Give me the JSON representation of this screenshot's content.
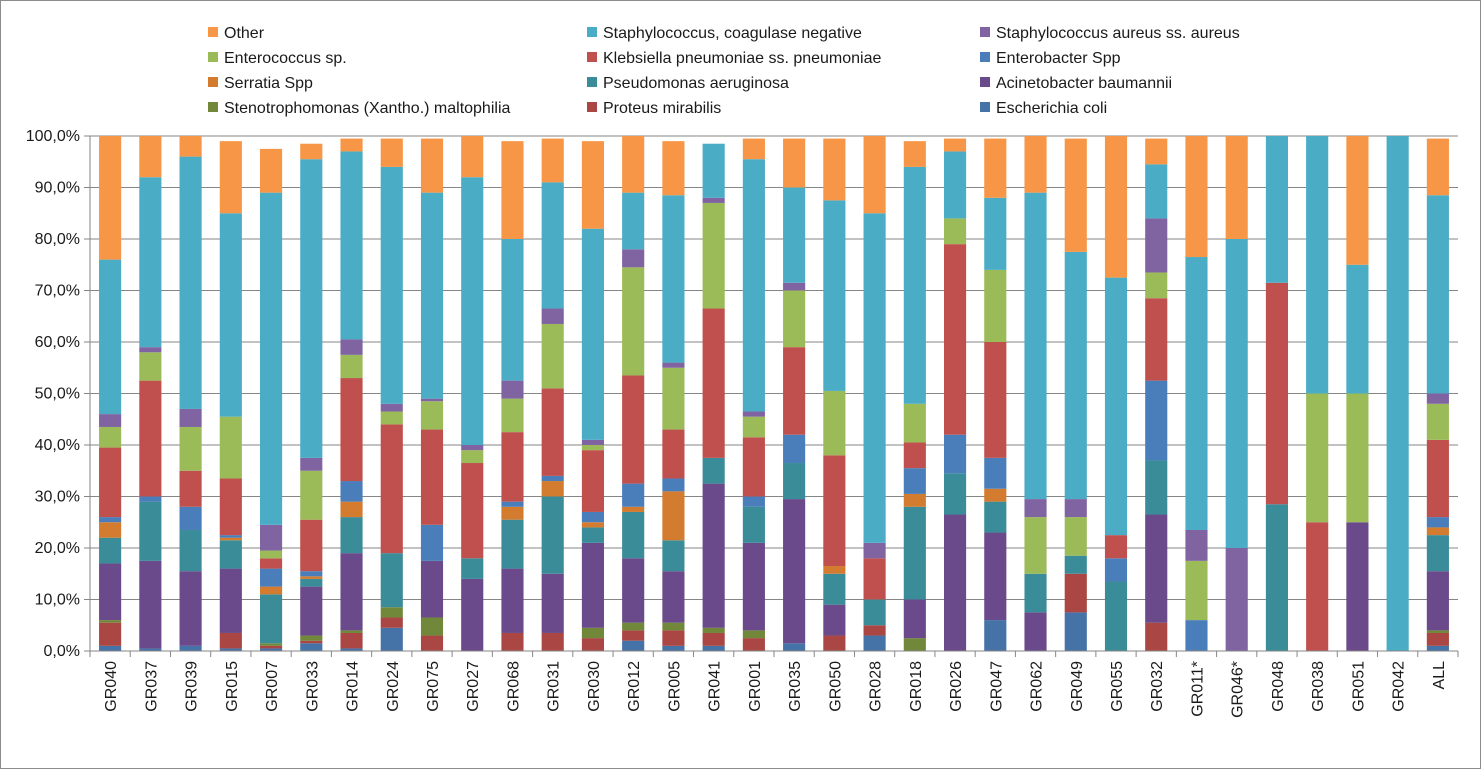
{
  "chart_data": {
    "type": "bar",
    "stacked": true,
    "normalized": true,
    "title": "",
    "xlabel": "",
    "ylabel": "",
    "ylim": [
      0,
      100
    ],
    "yticks": [
      "0,0%",
      "10,0%",
      "20,0%",
      "30,0%",
      "40,0%",
      "50,0%",
      "60,0%",
      "70,0%",
      "80,0%",
      "90,0%",
      "100,0%"
    ],
    "grid": "horizontal",
    "legend_position": "top",
    "categories": [
      "GR040",
      "GR037",
      "GR039",
      "GR015",
      "GR007",
      "GR033",
      "GR014",
      "GR024",
      "GR075",
      "GR027",
      "GR068",
      "GR031",
      "GR030",
      "GR012",
      "GR005",
      "GR041",
      "GR001",
      "GR035",
      "GR050",
      "GR028",
      "GR018",
      "GR026",
      "GR047",
      "GR062",
      "GR049",
      "GR055",
      "GR032",
      "GR011*",
      "GR046*",
      "GR048",
      "GR038",
      "GR051",
      "GR042",
      "ALL"
    ],
    "legend_order": [
      "Other",
      "Staphylococcus, coagulase negative",
      "Staphylococcus aureus ss. aureus",
      "Enterococcus sp.",
      "Klebsiella pneumoniae ss. pneumoniae",
      "Enterobacter Spp",
      "Serratia Spp",
      "Pseudomonas aeruginosa",
      "Acinetobacter baumannii",
      "Stenotrophomonas (Xantho.) maltophilia",
      "Proteus mirabilis",
      "Escherichia coli"
    ],
    "series": [
      {
        "name": "Escherichia coli",
        "color": "#4572A7",
        "values": [
          1,
          0.5,
          1,
          0.5,
          0.5,
          1.5,
          0.5,
          4.5,
          0,
          0,
          0,
          0,
          0,
          2,
          1,
          1,
          0,
          1.5,
          0,
          3,
          0,
          0,
          6,
          0,
          7.5,
          0,
          0,
          0,
          0,
          0,
          0,
          0,
          0,
          1
        ]
      },
      {
        "name": "Proteus mirabilis",
        "color": "#AA4643",
        "values": [
          4.5,
          0,
          0,
          3,
          0.5,
          0.5,
          3,
          2,
          3,
          0,
          3.5,
          3.5,
          2.5,
          2,
          3,
          2.5,
          2.5,
          0,
          3,
          2,
          0,
          0,
          0,
          0,
          7.5,
          0,
          5.5,
          0,
          0,
          0,
          0,
          0,
          0,
          2.5
        ]
      },
      {
        "name": "Stenotrophomonas (Xantho.) maltophilia",
        "color": "#71883B",
        "values": [
          0.5,
          0,
          0,
          0,
          0.5,
          1,
          0.5,
          2,
          3.5,
          0,
          0,
          0,
          2,
          1.5,
          1.5,
          1,
          1.5,
          0,
          0,
          0,
          2.5,
          0,
          0,
          0,
          0,
          0,
          0,
          0,
          0,
          0,
          0,
          0,
          0,
          0.5
        ]
      },
      {
        "name": "Acinetobacter baumannii",
        "color": "#6A4A8A",
        "values": [
          11,
          17,
          14.5,
          12.5,
          0,
          9.5,
          15,
          0,
          11,
          14,
          12.5,
          11.5,
          16.5,
          12.5,
          10,
          28,
          17,
          28,
          6,
          0,
          7.5,
          26.5,
          17,
          7.5,
          0,
          0,
          21,
          0,
          0,
          0,
          0,
          25,
          0,
          11.5
        ]
      },
      {
        "name": "Pseudomonas aeruginosa",
        "color": "#3A8C99",
        "values": [
          5,
          11.5,
          8,
          5.5,
          9.5,
          1.5,
          7,
          10.5,
          0,
          4,
          9.5,
          15,
          3,
          9,
          6,
          5,
          7,
          7,
          6,
          5,
          18,
          8,
          6,
          7.5,
          3.5,
          13.5,
          10.5,
          0,
          0,
          28.5,
          0,
          0,
          0,
          7
        ]
      },
      {
        "name": "Serratia Spp",
        "color": "#D37B2F",
        "values": [
          3,
          0,
          0,
          0.5,
          1.5,
          0.5,
          3,
          0,
          0,
          0,
          2.5,
          3,
          1,
          1,
          9.5,
          0,
          0,
          0,
          1.5,
          0,
          2.5,
          0,
          2.5,
          0,
          0,
          0,
          0,
          0,
          0,
          0,
          0,
          0,
          0,
          1.5
        ]
      },
      {
        "name": "Enterobacter Spp",
        "color": "#4A7EBB",
        "values": [
          1,
          1,
          4.5,
          0.5,
          3.5,
          1,
          4,
          0,
          7,
          0,
          1,
          1,
          2,
          4.5,
          2.5,
          0,
          2,
          5.5,
          0,
          0,
          5,
          7.5,
          6,
          0,
          0,
          4.5,
          15.5,
          6,
          0,
          0,
          0,
          0,
          0,
          2
        ]
      },
      {
        "name": "Klebsiella pneumoniae ss. pneumoniae",
        "color": "#C0504D",
        "values": [
          13.5,
          22.5,
          7,
          11,
          2,
          10,
          20,
          25,
          18.5,
          18.5,
          13.5,
          17,
          12,
          21,
          9.5,
          29,
          11.5,
          17,
          21.5,
          8,
          5,
          37,
          22.5,
          0,
          0,
          4.5,
          16,
          0,
          0,
          43,
          25,
          0,
          0,
          15
        ]
      },
      {
        "name": "Enterococcus sp.",
        "color": "#9BBB59",
        "values": [
          4,
          5.5,
          8.5,
          12,
          1.5,
          9.5,
          4.5,
          2.5,
          5.5,
          2.5,
          6.5,
          12.5,
          1,
          21,
          12,
          20.5,
          4,
          11,
          12.5,
          0,
          7.5,
          5,
          14,
          11,
          7.5,
          0,
          5,
          11.5,
          0,
          0,
          25,
          25,
          0,
          7
        ]
      },
      {
        "name": "Staphylococcus aureus ss. aureus",
        "color": "#8064A2",
        "values": [
          2.5,
          1,
          3.5,
          0,
          5,
          2.5,
          3,
          1.5,
          0.5,
          1,
          3.5,
          3,
          1,
          3.5,
          1,
          1,
          1,
          1.5,
          0,
          3,
          0,
          0,
          0,
          3.5,
          3.5,
          0,
          10.5,
          6,
          20,
          0,
          0,
          0,
          0,
          2
        ]
      },
      {
        "name": "Staphylococcus, coagulase negative",
        "color": "#4BACC6",
        "values": [
          30,
          33,
          49,
          39.5,
          64.5,
          58,
          36.5,
          46,
          40,
          52,
          27.5,
          24.5,
          41,
          11,
          32.5,
          10.5,
          49,
          18.5,
          37,
          64,
          46,
          13,
          14,
          59.5,
          48,
          50,
          10.5,
          53,
          60,
          28.5,
          50,
          25,
          100,
          38.5
        ]
      },
      {
        "name": "Other",
        "color": "#F79646",
        "values": [
          24,
          8,
          4,
          14,
          8.5,
          3,
          2.5,
          5.5,
          10.5,
          8,
          19,
          8.5,
          17,
          11,
          10.5,
          0,
          4,
          9.5,
          12,
          15,
          5,
          2.5,
          11.5,
          11,
          22,
          27.5,
          5,
          23.5,
          20,
          0,
          0,
          25,
          0,
          11
        ]
      }
    ]
  }
}
